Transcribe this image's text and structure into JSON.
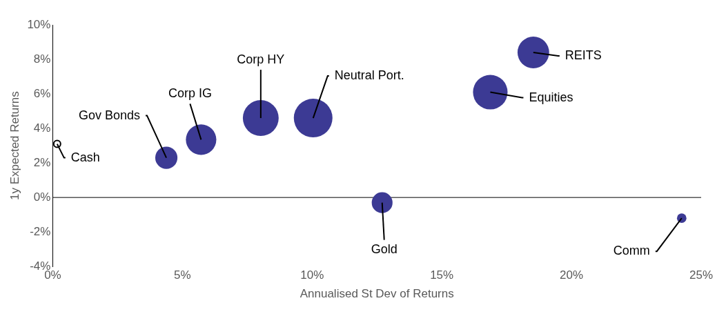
{
  "chart_data": {
    "type": "bubble",
    "xlabel": "Annualised St Dev of Returns",
    "ylabel": "1y Expected Returns",
    "xlim": [
      0,
      25
    ],
    "xticks": [
      {
        "value": 0,
        "label": "0%"
      },
      {
        "value": 5,
        "label": "5%"
      },
      {
        "value": 10,
        "label": "10%"
      },
      {
        "value": 15,
        "label": "15%"
      },
      {
        "value": 20,
        "label": "20%"
      },
      {
        "value": 25,
        "label": "25%"
      }
    ],
    "ylim": [
      -4,
      10
    ],
    "yticks": [
      {
        "value": -4,
        "label": "-4%"
      },
      {
        "value": -2,
        "label": "-2%"
      },
      {
        "value": 0,
        "label": "0%"
      },
      {
        "value": 2,
        "label": "2%"
      },
      {
        "value": 4,
        "label": "4%"
      },
      {
        "value": 6,
        "label": "6%"
      },
      {
        "value": 8,
        "label": "8%"
      },
      {
        "value": 10,
        "label": "10%"
      }
    ],
    "legend": false,
    "ref_lines": [
      {
        "axis": "y",
        "value": 0,
        "color": "#000000"
      }
    ],
    "series": [
      {
        "type": "scatter",
        "color": "#000000",
        "marker": "circle",
        "x": [
          0.17
        ],
        "values": [
          3.1
        ]
      },
      {
        "color": "#3c3a94",
        "x": [
          4.38,
          5.72,
          8.02,
          10.04,
          12.7,
          16.87,
          18.53,
          24.25
        ],
        "values": [
          2.3,
          3.35,
          4.6,
          4.6,
          -0.3,
          6.1,
          8.4,
          -1.2
        ],
        "sizes": [
          0.33,
          0.62,
          0.86,
          1,
          0.29,
          0.8,
          0.67,
          0.06
        ]
      }
    ],
    "annotations": [
      {
        "text": "Cash",
        "x": 0.17,
        "y": 3.1
      },
      {
        "text": "Gov Bonds",
        "x": 4.38,
        "y": 2.3
      },
      {
        "text": "Corp IG",
        "x": 5.72,
        "y": 3.35
      },
      {
        "text": "Corp HY",
        "x": 8.02,
        "y": 4.6
      },
      {
        "text": "Neutral Port.",
        "x": 10.04,
        "y": 4.6
      },
      {
        "text": "Gold",
        "x": 12.7,
        "y": -0.3
      },
      {
        "text": "Equities",
        "x": 16.87,
        "y": 6.1
      },
      {
        "text": "REITS",
        "x": 18.53,
        "y": 8.4
      },
      {
        "text": "Comm",
        "x": 24.25,
        "y": -1.2
      }
    ]
  }
}
